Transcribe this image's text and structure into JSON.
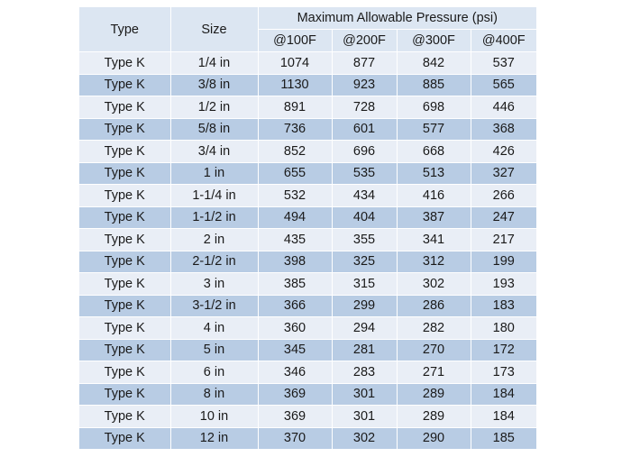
{
  "header": {
    "type": "Type",
    "size": "Size",
    "group": "Maximum Allowable Pressure (psi)",
    "temps": [
      "@100F",
      "@200F",
      "@300F",
      "@400F"
    ]
  },
  "rows": [
    {
      "type": "Type K",
      "size": "1/4 in",
      "p": [
        "1074",
        "877",
        "842",
        "537"
      ]
    },
    {
      "type": "Type K",
      "size": "3/8 in",
      "p": [
        "1130",
        "923",
        "885",
        "565"
      ]
    },
    {
      "type": "Type K",
      "size": "1/2 in",
      "p": [
        "891",
        "728",
        "698",
        "446"
      ]
    },
    {
      "type": "Type K",
      "size": "5/8 in",
      "p": [
        "736",
        "601",
        "577",
        "368"
      ]
    },
    {
      "type": "Type K",
      "size": "3/4 in",
      "p": [
        "852",
        "696",
        "668",
        "426"
      ]
    },
    {
      "type": "Type K",
      "size": "1 in",
      "p": [
        "655",
        "535",
        "513",
        "327"
      ]
    },
    {
      "type": "Type K",
      "size": "1-1/4 in",
      "p": [
        "532",
        "434",
        "416",
        "266"
      ]
    },
    {
      "type": "Type K",
      "size": "1-1/2 in",
      "p": [
        "494",
        "404",
        "387",
        "247"
      ]
    },
    {
      "type": "Type K",
      "size": "2 in",
      "p": [
        "435",
        "355",
        "341",
        "217"
      ]
    },
    {
      "type": "Type K",
      "size": "2-1/2 in",
      "p": [
        "398",
        "325",
        "312",
        "199"
      ]
    },
    {
      "type": "Type K",
      "size": "3 in",
      "p": [
        "385",
        "315",
        "302",
        "193"
      ]
    },
    {
      "type": "Type K",
      "size": "3-1/2 in",
      "p": [
        "366",
        "299",
        "286",
        "183"
      ]
    },
    {
      "type": "Type K",
      "size": "4 in",
      "p": [
        "360",
        "294",
        "282",
        "180"
      ]
    },
    {
      "type": "Type K",
      "size": "5 in",
      "p": [
        "345",
        "281",
        "270",
        "172"
      ]
    },
    {
      "type": "Type K",
      "size": "6 in",
      "p": [
        "346",
        "283",
        "271",
        "173"
      ]
    },
    {
      "type": "Type K",
      "size": "8 in",
      "p": [
        "369",
        "301",
        "289",
        "184"
      ]
    },
    {
      "type": "Type K",
      "size": "10 in",
      "p": [
        "369",
        "301",
        "289",
        "184"
      ]
    },
    {
      "type": "Type K",
      "size": "12 in",
      "p": [
        "370",
        "302",
        "290",
        "185"
      ]
    }
  ],
  "colors": {
    "header_bg": "#dce6f2",
    "row_light": "#e9eef6",
    "row_dark": "#b8cce4"
  }
}
